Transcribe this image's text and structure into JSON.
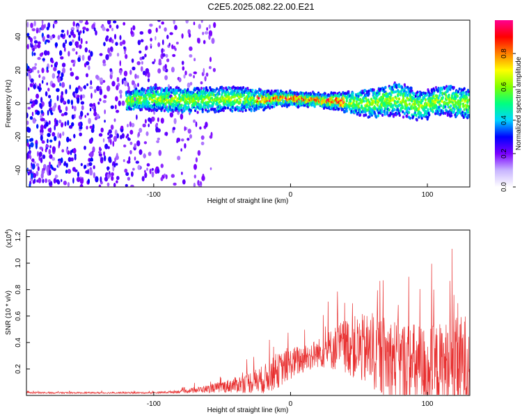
{
  "title": "C2E5.2025.082.22.00.E21",
  "chart_data": [
    {
      "type": "heatmap",
      "xlabel": "Height of straight line (km)",
      "ylabel": "Frequency (Hz)",
      "xlim": [
        -193,
        131
      ],
      "ylim": [
        -50,
        50
      ],
      "xticks": [
        -100,
        0,
        100
      ],
      "yticks": [
        -40,
        -20,
        0,
        20,
        40
      ],
      "colorbar": {
        "label": "Normalized spectral amplitude",
        "range": [
          0,
          1
        ],
        "ticks": [
          "0.0",
          "0.2",
          "0.4",
          "0.6",
          "0.8"
        ],
        "stops": [
          "#ffffff",
          "#c8b4ff",
          "#7a00ff",
          "#0000ff",
          "#00d4ff",
          "#00ff80",
          "#80ff00",
          "#ffff00",
          "#ff8000",
          "#ff0000",
          "#ff0090"
        ]
      },
      "ridge": {
        "x": [
          -120,
          -100,
          -80,
          -60,
          -40,
          -20,
          -10,
          0,
          20,
          40,
          60,
          80,
          95,
          110,
          131
        ],
        "center_hz": [
          2,
          3,
          2,
          2,
          3,
          2,
          3,
          3,
          2,
          1,
          0,
          3,
          -2,
          2,
          0
        ],
        "half_width_hz": [
          4,
          5,
          5,
          5,
          5,
          4,
          3,
          3,
          3,
          4,
          6,
          7,
          6,
          6,
          6
        ]
      },
      "noise_region_x": [
        -193,
        -55
      ]
    },
    {
      "type": "line",
      "xlabel": "Height of straight line (km)",
      "ylabel": "SNR (10 * v/v)",
      "y_multiplier_label": "(x10",
      "y_multiplier_exp": "4",
      "xlim": [
        -193,
        131
      ],
      "ylim": [
        0,
        1.25
      ],
      "xticks": [
        -100,
        0,
        100
      ],
      "yticks": [
        0.2,
        0.4,
        0.6,
        0.8,
        1.0,
        1.2
      ],
      "color": "#e83030",
      "envelope": {
        "x": [
          -193,
          -140,
          -100,
          -80,
          -60,
          -40,
          -20,
          -10,
          0,
          20,
          40,
          60,
          80,
          100,
          120,
          131
        ],
        "base": [
          0.02,
          0.02,
          0.02,
          0.03,
          0.05,
          0.08,
          0.12,
          0.18,
          0.24,
          0.32,
          0.38,
          0.33,
          0.25,
          0.2,
          0.22,
          0.25
        ],
        "amp": [
          0.01,
          0.01,
          0.01,
          0.02,
          0.05,
          0.1,
          0.18,
          0.22,
          0.2,
          0.18,
          0.35,
          0.5,
          0.55,
          0.55,
          0.6,
          0.65
        ]
      }
    }
  ]
}
